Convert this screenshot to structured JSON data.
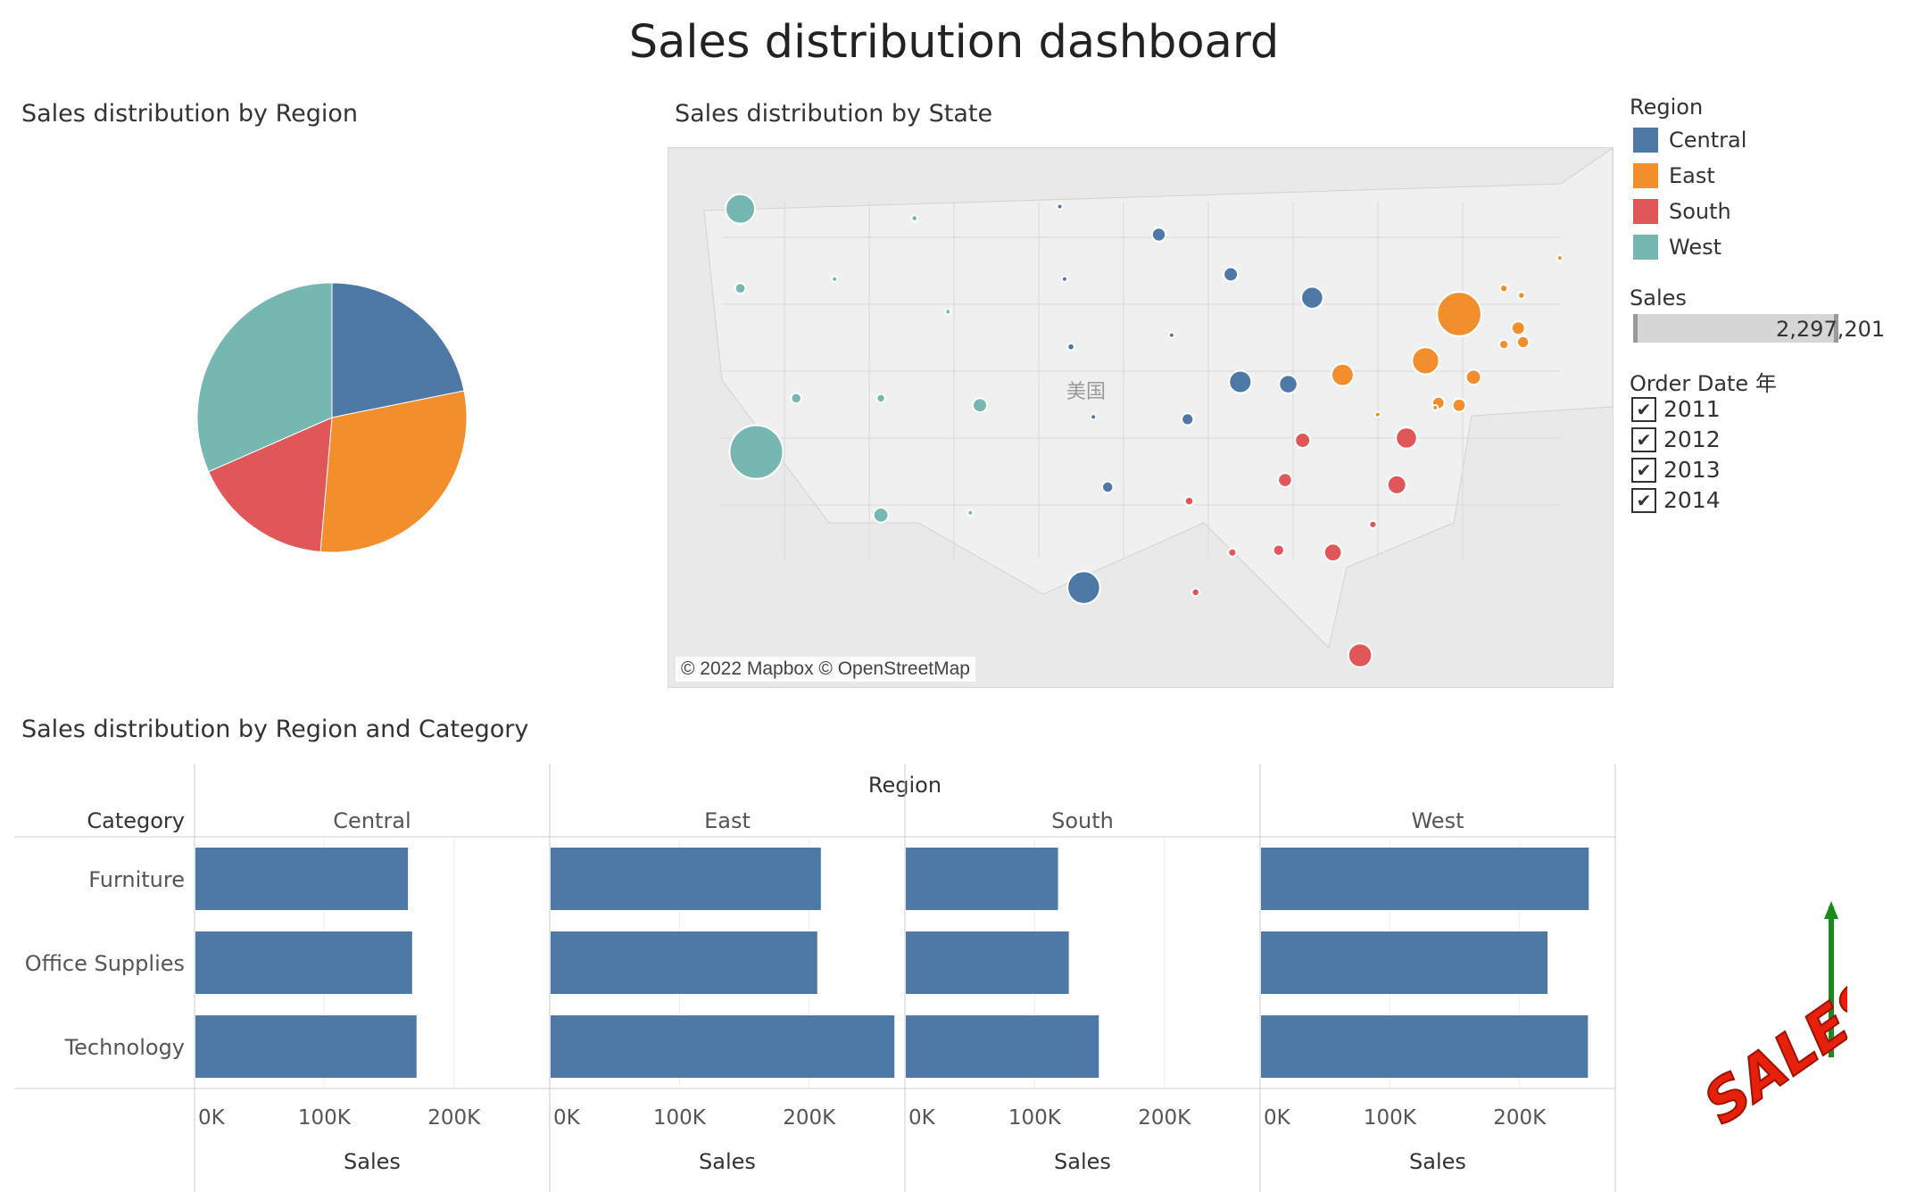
{
  "dashboard": {
    "title": "Sales distribution dashboard"
  },
  "pie_section": {
    "title": "Sales distribution by Region"
  },
  "map_section": {
    "title": "Sales distribution by State",
    "credit": "© 2022 Mapbox © OpenStreetMap",
    "country_label": "美国"
  },
  "bar_section": {
    "title": "Sales distribution by Region and Category"
  },
  "legend": {
    "region_title": "Region",
    "regions": [
      {
        "name": "Central",
        "color": "#4e79a7"
      },
      {
        "name": "East",
        "color": "#f28e2b"
      },
      {
        "name": "South",
        "color": "#e15759"
      },
      {
        "name": "West",
        "color": "#76b7b2"
      }
    ],
    "sales_title": "Sales",
    "sales_value": "2,297,201",
    "order_date_title": "Order Date 年",
    "years": [
      "2011",
      "2012",
      "2013",
      "2014"
    ],
    "check_mark": "✔"
  },
  "logo_text": "SALES",
  "chart_data": [
    {
      "type": "pie",
      "title": "Sales distribution by Region",
      "categories": [
        "Central",
        "East",
        "South",
        "West"
      ],
      "values": [
        501240,
        678781,
        391722,
        725458
      ],
      "colors": [
        "#4e79a7",
        "#f28e2b",
        "#e15759",
        "#76b7b2"
      ]
    },
    {
      "type": "scatter",
      "title": "Sales distribution by State",
      "note_color_by": "Region",
      "points": [
        {
          "state": "Washington",
          "region": "West",
          "lon": -120.5,
          "lat": 47.4,
          "sales": 138641
        },
        {
          "state": "Oregon",
          "region": "West",
          "lon": -120.5,
          "lat": 44.0,
          "sales": 17431
        },
        {
          "state": "California",
          "region": "West",
          "lon": -119.5,
          "lat": 37.0,
          "sales": 457688
        },
        {
          "state": "Nevada",
          "region": "West",
          "lon": -117.0,
          "lat": 39.3,
          "sales": 16729
        },
        {
          "state": "Idaho",
          "region": "West",
          "lon": -114.6,
          "lat": 44.4,
          "sales": 4382
        },
        {
          "state": "Montana",
          "region": "West",
          "lon": -109.6,
          "lat": 47.0,
          "sales": 5589
        },
        {
          "state": "Wyoming",
          "region": "West",
          "lon": -107.5,
          "lat": 43.0,
          "sales": 1603
        },
        {
          "state": "Utah",
          "region": "West",
          "lon": -111.7,
          "lat": 39.3,
          "sales": 11220
        },
        {
          "state": "Colorado",
          "region": "West",
          "lon": -105.5,
          "lat": 39.0,
          "sales": 32108
        },
        {
          "state": "Arizona",
          "region": "West",
          "lon": -111.7,
          "lat": 34.3,
          "sales": 35282
        },
        {
          "state": "New Mexico",
          "region": "West",
          "lon": -106.1,
          "lat": 34.4,
          "sales": 4784
        },
        {
          "state": "North Dakota",
          "region": "Central",
          "lon": -100.5,
          "lat": 47.5,
          "sales": 920
        },
        {
          "state": "South Dakota",
          "region": "Central",
          "lon": -100.2,
          "lat": 44.4,
          "sales": 1316
        },
        {
          "state": "Nebraska",
          "region": "Central",
          "lon": -99.8,
          "lat": 41.5,
          "sales": 7465
        },
        {
          "state": "Kansas",
          "region": "Central",
          "lon": -98.4,
          "lat": 38.5,
          "sales": 2914
        },
        {
          "state": "Oklahoma",
          "region": "Central",
          "lon": -97.5,
          "lat": 35.5,
          "sales": 19683
        },
        {
          "state": "Texas",
          "region": "Central",
          "lon": -99.0,
          "lat": 31.2,
          "sales": 170188
        },
        {
          "state": "Minnesota",
          "region": "Central",
          "lon": -94.3,
          "lat": 46.3,
          "sales": 29863
        },
        {
          "state": "Iowa",
          "region": "Central",
          "lon": -93.5,
          "lat": 42.0,
          "sales": 4580
        },
        {
          "state": "Missouri",
          "region": "Central",
          "lon": -92.5,
          "lat": 38.4,
          "sales": 22205
        },
        {
          "state": "Wisconsin",
          "region": "Central",
          "lon": -89.8,
          "lat": 44.6,
          "sales": 32115
        },
        {
          "state": "Illinois",
          "region": "Central",
          "lon": -89.2,
          "lat": 40.0,
          "sales": 80166
        },
        {
          "state": "Michigan",
          "region": "Central",
          "lon": -84.7,
          "lat": 43.6,
          "sales": 76270
        },
        {
          "state": "Indiana",
          "region": "Central",
          "lon": -86.2,
          "lat": 39.9,
          "sales": 53555
        },
        {
          "state": "Ohio",
          "region": "East",
          "lon": -82.8,
          "lat": 40.3,
          "sales": 78258
        },
        {
          "state": "Pennsylvania",
          "region": "East",
          "lon": -77.6,
          "lat": 40.9,
          "sales": 116512
        },
        {
          "state": "New York",
          "region": "East",
          "lon": -75.5,
          "lat": 42.9,
          "sales": 310876
        },
        {
          "state": "Vermont",
          "region": "East",
          "lon": -72.7,
          "lat": 44.0,
          "sales": 8929
        },
        {
          "state": "New Hampshire",
          "region": "East",
          "lon": -71.6,
          "lat": 43.7,
          "sales": 7293
        },
        {
          "state": "Maine",
          "region": "East",
          "lon": -69.2,
          "lat": 45.3,
          "sales": 1271
        },
        {
          "state": "Massachusetts",
          "region": "East",
          "lon": -71.8,
          "lat": 42.3,
          "sales": 28634
        },
        {
          "state": "Rhode Island",
          "region": "East",
          "lon": -71.5,
          "lat": 41.7,
          "sales": 22628
        },
        {
          "state": "Connecticut",
          "region": "East",
          "lon": -72.7,
          "lat": 41.6,
          "sales": 13384
        },
        {
          "state": "New Jersey",
          "region": "East",
          "lon": -74.6,
          "lat": 40.2,
          "sales": 35764
        },
        {
          "state": "Delaware",
          "region": "East",
          "lon": -75.5,
          "lat": 39.0,
          "sales": 27451
        },
        {
          "state": "Maryland",
          "region": "East",
          "lon": -76.8,
          "lat": 39.1,
          "sales": 23706
        },
        {
          "state": "West Virginia",
          "region": "East",
          "lon": -80.6,
          "lat": 38.6,
          "sales": 1210
        },
        {
          "state": "District of Columbia",
          "region": "East",
          "lon": -77.0,
          "lat": 38.9,
          "sales": 2865
        },
        {
          "state": "Virginia",
          "region": "South",
          "lon": -78.8,
          "lat": 37.6,
          "sales": 70637
        },
        {
          "state": "Kentucky",
          "region": "South",
          "lon": -85.3,
          "lat": 37.5,
          "sales": 36592
        },
        {
          "state": "North Carolina",
          "region": "South",
          "lon": -79.4,
          "lat": 35.6,
          "sales": 55603
        },
        {
          "state": "Tennessee",
          "region": "South",
          "lon": -86.4,
          "lat": 35.8,
          "sales": 30662
        },
        {
          "state": "South Carolina",
          "region": "South",
          "lon": -80.9,
          "lat": 33.9,
          "sales": 8482
        },
        {
          "state": "Georgia",
          "region": "South",
          "lon": -83.4,
          "lat": 32.7,
          "sales": 49096
        },
        {
          "state": "Alabama",
          "region": "South",
          "lon": -86.8,
          "lat": 32.8,
          "sales": 19511
        },
        {
          "state": "Mississippi",
          "region": "South",
          "lon": -89.7,
          "lat": 32.7,
          "sales": 10771
        },
        {
          "state": "Arkansas",
          "region": "South",
          "lon": -92.4,
          "lat": 34.9,
          "sales": 11678
        },
        {
          "state": "Louisiana",
          "region": "South",
          "lon": -92.0,
          "lat": 31.0,
          "sales": 9217
        },
        {
          "state": "Florida",
          "region": "South",
          "lon": -81.7,
          "lat": 28.3,
          "sales": 89474
        }
      ]
    },
    {
      "type": "bar",
      "title": "Sales distribution by Region and Category",
      "column_header": "Region",
      "row_header": "Category",
      "categories": [
        "Furniture",
        "Office Supplies",
        "Technology"
      ],
      "xlabel": "Sales",
      "xlim": [
        0,
        260000
      ],
      "xticks": [
        0,
        100000,
        200000
      ],
      "xtick_labels": [
        "0K",
        "100K",
        "200K"
      ],
      "bar_color": "#4e79a7",
      "panels": [
        {
          "region": "Central",
          "values": [
            163797,
            167026,
            170416
          ]
        },
        {
          "region": "East",
          "values": [
            208291,
            205516,
            264974
          ]
        },
        {
          "region": "South",
          "values": [
            117299,
            125651,
            148772
          ]
        },
        {
          "region": "West",
          "values": [
            252613,
            220853,
            251992
          ]
        }
      ]
    }
  ]
}
